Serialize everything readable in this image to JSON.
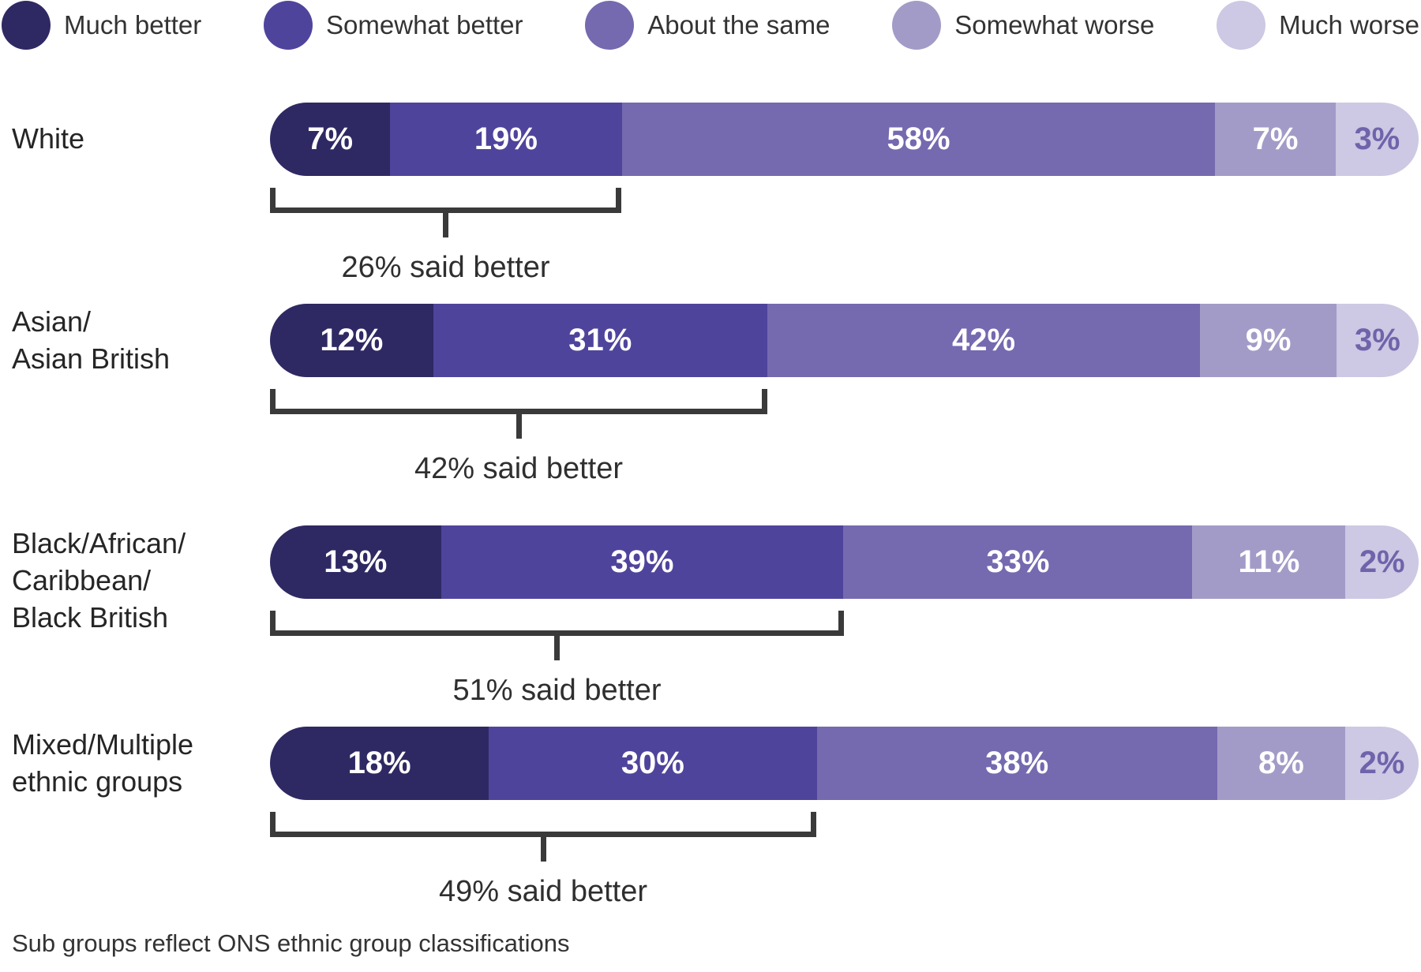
{
  "legend": {
    "items": [
      {
        "label": "Much better",
        "color": "#2e2963"
      },
      {
        "label": "Somewhat better",
        "color": "#4f449c"
      },
      {
        "label": "About the same",
        "color": "#7569b0"
      },
      {
        "label": "Somewhat worse",
        "color": "#a39bc7"
      },
      {
        "label": "Much worse",
        "color": "#cdc8e3"
      }
    ]
  },
  "colors": {
    "bracket_line": "#3a3a3a",
    "last_segment_text": "#6f64ab",
    "segment_text": "#ffffff",
    "body_text": "#2f2f2f"
  },
  "rows": [
    {
      "label": "White",
      "values": [
        7,
        19,
        58,
        7,
        3
      ],
      "seg_labels": [
        "7%",
        "19%",
        "58%",
        "7%",
        "3%"
      ],
      "callout": "26% said better"
    },
    {
      "label": "Asian/\nAsian British",
      "values": [
        12,
        31,
        42,
        9,
        3
      ],
      "seg_labels": [
        "12%",
        "31%",
        "42%",
        "9%",
        "3%"
      ],
      "callout": "42% said better"
    },
    {
      "label": "Black/African/\nCaribbean/\nBlack British",
      "values": [
        13,
        39,
        33,
        11,
        2
      ],
      "seg_labels": [
        "13%",
        "39%",
        "33%",
        "11%",
        "2%"
      ],
      "callout": "51% said better"
    },
    {
      "label": "Mixed/Multiple\nethnic groups",
      "values": [
        18,
        30,
        38,
        8,
        2
      ],
      "seg_labels": [
        "18%",
        "30%",
        "38%",
        "8%",
        "2%"
      ],
      "callout": "49% said better"
    }
  ],
  "footnote": "Sub groups reflect ONS ethnic group classifications",
  "chart_data": {
    "type": "bar",
    "variant": "horizontal-stacked-rounded",
    "unit": "%",
    "categories": [
      "White",
      "Asian/Asian British",
      "Black/African/Caribbean/Black British",
      "Mixed/Multiple ethnic groups"
    ],
    "series": [
      {
        "name": "Much better",
        "values": [
          7,
          12,
          13,
          18
        ],
        "color": "#2e2963"
      },
      {
        "name": "Somewhat better",
        "values": [
          19,
          31,
          39,
          30
        ],
        "color": "#4f449c"
      },
      {
        "name": "About the same",
        "values": [
          58,
          42,
          33,
          38
        ],
        "color": "#7569b0"
      },
      {
        "name": "Somewhat worse",
        "values": [
          7,
          9,
          11,
          8
        ],
        "color": "#a39bc7"
      },
      {
        "name": "Much worse",
        "values": [
          3,
          3,
          2,
          2
        ],
        "color": "#cdc8e3"
      }
    ],
    "annotations": [
      {
        "category": "White",
        "text": "26% said better",
        "spans_series": [
          "Much better",
          "Somewhat better"
        ]
      },
      {
        "category": "Asian/Asian British",
        "text": "42% said better",
        "spans_series": [
          "Much better",
          "Somewhat better"
        ]
      },
      {
        "category": "Black/African/Caribbean/Black British",
        "text": "51% said better",
        "spans_series": [
          "Much better",
          "Somewhat better"
        ]
      },
      {
        "category": "Mixed/Multiple ethnic groups",
        "text": "49% said better",
        "spans_series": [
          "Much better",
          "Somewhat better"
        ]
      }
    ],
    "legend_position": "top",
    "grid": false,
    "footnote": "Sub groups reflect ONS ethnic group classifications"
  }
}
